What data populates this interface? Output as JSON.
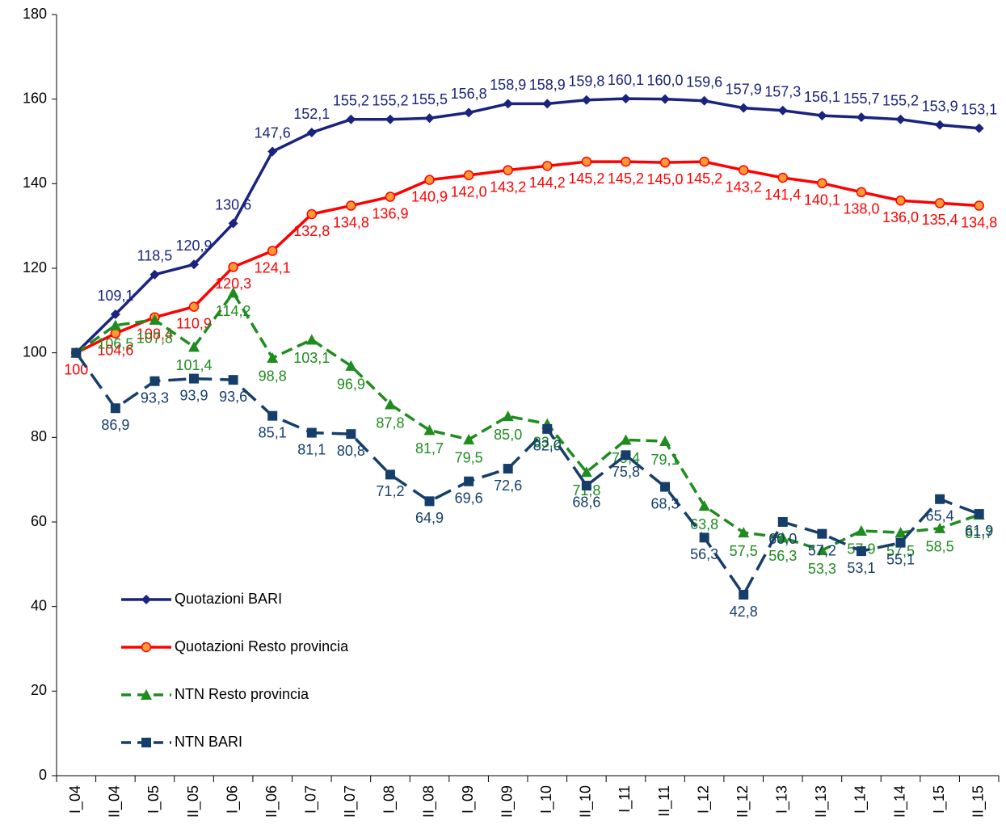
{
  "chart_data": {
    "type": "line",
    "categories": [
      "I_04",
      "II_04",
      "I_05",
      "II_05",
      "I_06",
      "II_06",
      "I_07",
      "II_07",
      "I_08",
      "II_08",
      "I_09",
      "II_09",
      "I_10",
      "II_10",
      "I_11",
      "II_11",
      "I_12",
      "II_12",
      "I_13",
      "II_13",
      "I_14",
      "II_14",
      "I_15",
      "II_15"
    ],
    "ylim": [
      0,
      180
    ],
    "yticks": [
      0,
      20,
      40,
      60,
      80,
      100,
      120,
      140,
      160,
      180
    ],
    "legend": "left",
    "series": [
      {
        "name": "Quotazioni BARI",
        "color": "#1a237e",
        "marker": "diamond",
        "dash": "solid",
        "values": [
          100,
          109.1,
          118.5,
          120.9,
          130.6,
          147.6,
          152.1,
          155.2,
          155.2,
          155.5,
          156.8,
          158.9,
          158.9,
          159.8,
          160.1,
          160.0,
          159.6,
          157.9,
          157.3,
          156.1,
          155.7,
          155.2,
          153.9,
          153.1
        ],
        "value_labels": [
          null,
          "109,1",
          "118,5",
          "120,9",
          "130,6",
          "147,6",
          "152,1",
          "155,2",
          "155,2",
          "155,5",
          "156,8",
          "158,9",
          "158,9",
          "159,8",
          "160,1",
          "160,0",
          "159,6",
          "157,9",
          "157,3",
          "156,1",
          "155,7",
          "155,2",
          "153,9",
          "153,1"
        ]
      },
      {
        "name": "Quotazioni Resto provincia",
        "color": "#ff0000",
        "marker": "circle",
        "dash": "solid",
        "values": [
          100,
          104.6,
          108.4,
          110.9,
          120.3,
          124.1,
          132.8,
          134.8,
          136.9,
          140.9,
          142.0,
          143.2,
          144.2,
          145.2,
          145.2,
          145.0,
          145.2,
          143.2,
          141.4,
          140.1,
          138.0,
          136.0,
          135.4,
          134.8
        ],
        "value_labels": [
          "100",
          "104,6",
          "108,4",
          "110,9",
          "120,3",
          "124,1",
          "132,8",
          "134,8",
          "136,9",
          "140,9",
          "142,0",
          "143,2",
          "144,2",
          "145,2",
          "145,2",
          "145,0",
          "145,2",
          "143,2",
          "141,4",
          "140,1",
          "138,0",
          "136,0",
          "135,4",
          "134,8"
        ]
      },
      {
        "name": "NTN Resto provincia",
        "color": "#1e8c1e",
        "marker": "triangle",
        "dash": "14 7",
        "values": [
          100,
          106.5,
          107.8,
          101.4,
          114.2,
          98.8,
          103.1,
          96.9,
          87.8,
          81.7,
          79.5,
          85.0,
          83.2,
          71.8,
          79.4,
          79.1,
          63.8,
          57.5,
          56.3,
          53.3,
          57.9,
          57.5,
          58.5,
          61.7
        ],
        "value_labels": [
          null,
          "106,5",
          "107,8",
          "101,4",
          "114,2",
          "98,8",
          "103,1",
          "96,9",
          "87,8",
          "81,7",
          "79,5",
          "85,0",
          "83,2",
          "71,8",
          "79,4",
          "79,1",
          "63,8",
          "57,5",
          "56,3",
          "53,3",
          "57,9",
          "57,5",
          "58,5",
          "61,7"
        ]
      },
      {
        "name": "NTN  BARI",
        "color": "#153e6b",
        "marker": "square",
        "dash": "22 10",
        "values": [
          100,
          86.9,
          93.3,
          93.9,
          93.6,
          85.1,
          81.1,
          80.8,
          71.2,
          64.9,
          69.6,
          72.6,
          82.0,
          68.6,
          75.8,
          68.3,
          56.3,
          42.8,
          60.0,
          57.2,
          53.1,
          55.1,
          65.4,
          61.9
        ],
        "value_labels": [
          null,
          "86,9",
          "93,3",
          "93,9",
          "93,6",
          "85,1",
          "81,1",
          "80,8",
          "71,2",
          "64,9",
          "69,6",
          "72,6",
          "82,0",
          "68,6",
          "75,8",
          "68,3",
          "56,3",
          "42,8",
          "60,0",
          "57,2",
          "53,1",
          "55,1",
          "65,4",
          "61,9"
        ]
      }
    ]
  }
}
